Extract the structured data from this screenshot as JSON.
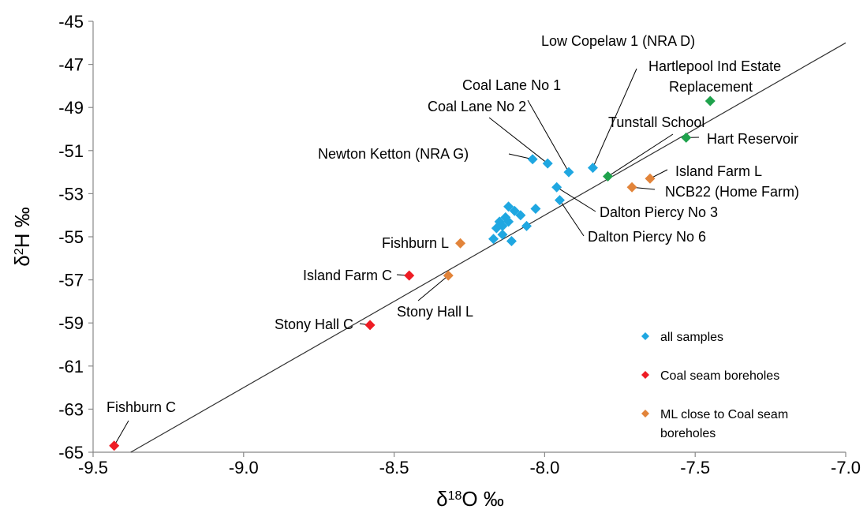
{
  "chart_data": {
    "type": "scatter",
    "xlabel": "δ18O ‰",
    "ylabel": "δ2H ‰",
    "xlim": [
      -9.5,
      -7.0
    ],
    "ylim": [
      -65,
      -45
    ],
    "xticks": [
      "-9.5",
      "-9.0",
      "-8.5",
      "-8.0",
      "-7.5",
      "-7.0"
    ],
    "yticks": [
      "-45",
      "-47",
      "-49",
      "-51",
      "-53",
      "-55",
      "-57",
      "-59",
      "-61",
      "-63",
      "-65"
    ],
    "grid": false,
    "legend_position": "bottom-right",
    "reference_line": {
      "slope": 8,
      "intercept": 10
    },
    "series": [
      {
        "name": "all samples",
        "color": "#1fa7e1",
        "points": [
          {
            "x": -8.04,
            "y": -51.4
          },
          {
            "x": -7.99,
            "y": -51.6
          },
          {
            "x": -7.92,
            "y": -52.0
          },
          {
            "x": -7.84,
            "y": -51.8
          },
          {
            "x": -7.96,
            "y": -52.7
          },
          {
            "x": -7.95,
            "y": -53.3
          },
          {
            "x": -8.12,
            "y": -53.6
          },
          {
            "x": -8.1,
            "y": -53.8
          },
          {
            "x": -8.08,
            "y": -54.0
          },
          {
            "x": -8.03,
            "y": -53.7
          },
          {
            "x": -8.13,
            "y": -54.1
          },
          {
            "x": -8.15,
            "y": -54.3
          },
          {
            "x": -8.16,
            "y": -54.6
          },
          {
            "x": -8.14,
            "y": -54.5
          },
          {
            "x": -8.12,
            "y": -54.3
          },
          {
            "x": -8.06,
            "y": -54.5
          },
          {
            "x": -8.14,
            "y": -54.9
          },
          {
            "x": -8.17,
            "y": -55.1
          },
          {
            "x": -8.11,
            "y": -55.2
          }
        ]
      },
      {
        "name": "Coal seam boreholes",
        "color": "#ee1c24",
        "points": [
          {
            "x": -9.43,
            "y": -64.7
          },
          {
            "x": -8.58,
            "y": -59.1
          },
          {
            "x": -8.45,
            "y": -56.8
          }
        ]
      },
      {
        "name": "ML close to Coal seam boreholes",
        "color": "#e2843a",
        "points": [
          {
            "x": -8.28,
            "y": -55.3
          },
          {
            "x": -8.32,
            "y": -56.8
          },
          {
            "x": -7.65,
            "y": -52.3
          },
          {
            "x": -7.71,
            "y": -52.7
          }
        ]
      },
      {
        "name": "",
        "color": "#1fa24c",
        "points": [
          {
            "x": -7.45,
            "y": -48.7
          },
          {
            "x": -7.53,
            "y": -50.4
          },
          {
            "x": -7.79,
            "y": -52.2
          }
        ]
      }
    ],
    "annotations": [
      {
        "text": "Low Copelaw 1 (NRA D)",
        "x": -7.84,
        "y": -51.8
      },
      {
        "text": "Hartlepool Ind Estate",
        "x": -7.45,
        "y": -48.7
      },
      {
        "text": "Replacement",
        "x": -7.45,
        "y": -48.7
      },
      {
        "text": "Coal Lane No 1",
        "x": -7.92,
        "y": -52.0
      },
      {
        "text": "Coal Lane No 2",
        "x": -7.99,
        "y": -51.6
      },
      {
        "text": "Tunstall School",
        "x": -7.79,
        "y": -52.2
      },
      {
        "text": "Hart Reservoir",
        "x": -7.53,
        "y": -50.4
      },
      {
        "text": "Newton Ketton (NRA G)",
        "x": -8.04,
        "y": -51.4
      },
      {
        "text": "Island Farm L",
        "x": -7.65,
        "y": -52.3
      },
      {
        "text": "NCB22 (Home Farm)",
        "x": -7.71,
        "y": -52.7
      },
      {
        "text": "Dalton Piercy No 3",
        "x": -7.96,
        "y": -52.7
      },
      {
        "text": "Dalton Piercy No 6",
        "x": -7.95,
        "y": -53.3
      },
      {
        "text": "Fishburn L",
        "x": -8.28,
        "y": -55.3
      },
      {
        "text": "Island Farm C",
        "x": -8.45,
        "y": -56.8
      },
      {
        "text": "Stony Hall L",
        "x": -8.32,
        "y": -56.8
      },
      {
        "text": "Stony Hall C",
        "x": -8.58,
        "y": -59.1
      },
      {
        "text": "Fishburn C",
        "x": -9.43,
        "y": -64.7
      }
    ],
    "legend": [
      {
        "label": "all samples",
        "color": "#1fa7e1"
      },
      {
        "label": "Coal seam boreholes",
        "color": "#ee1c24"
      },
      {
        "label": "ML close to Coal seam",
        "color": "#e2843a"
      },
      {
        "label": "boreholes",
        "color": ""
      }
    ]
  }
}
